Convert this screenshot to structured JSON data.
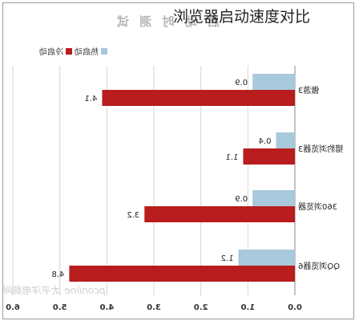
{
  "overlay_title": "浏览器启动速度对比",
  "chart_data": {
    "type": "bar",
    "orientation": "horizontal",
    "title": "启 动 时 测 试",
    "categories": [
      "傲游3",
      "猎豹浏览器3",
      "360浏览器",
      "QQ浏览器6"
    ],
    "series": [
      {
        "name": "热启动",
        "color": "#a8c8dc",
        "values": [
          0.9,
          0.4,
          0.9,
          1.2
        ]
      },
      {
        "name": "冷启动",
        "color": "#b81c1c",
        "values": [
          4.1,
          1.1,
          3.2,
          4.8
        ]
      }
    ],
    "xlim": [
      0,
      6
    ],
    "xticks": [
      "0.0",
      "1.0",
      "2.0",
      "3.0",
      "4.0",
      "5.0",
      "6.0"
    ],
    "legend_position": "top-left",
    "grid": "vertical",
    "watermark": "pconline 太平洋电脑网"
  }
}
